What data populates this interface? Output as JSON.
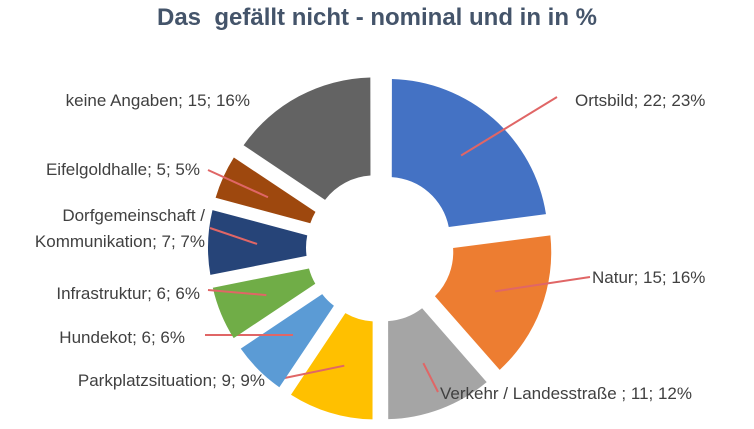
{
  "chart_data": {
    "type": "donut",
    "title": "Das  gefällt nicht - nominal und in in %",
    "labels": [
      "Ortsbild; 22; 23%",
      "Natur; 15; 16%",
      "Verkehr / Landesstraße ; 11; 12%",
      "Parkplatzsituation; 9; 9%",
      "Hundekot; 6; 6%",
      "Infrastruktur; 6; 6%",
      "Dorfgemeinschaft /\nKommunikation; 7; 7%",
      "Eifelgoldhalle; 5; 5%",
      "keine Angaben; 15; 16%"
    ],
    "values": [
      22,
      15,
      11,
      9,
      6,
      6,
      7,
      5,
      15
    ],
    "colors": [
      "#4472c4",
      "#ed7d31",
      "#a5a5a5",
      "#ffc000",
      "#5b9bd5",
      "#70ad47",
      "#264478",
      "#9e480e",
      "#636363"
    ]
  }
}
